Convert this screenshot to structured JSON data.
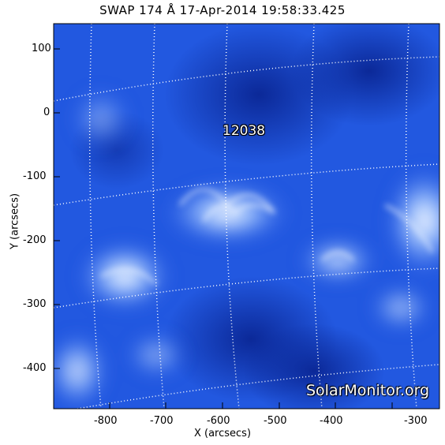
{
  "title": "SWAP 174 Å 17-Apr-2014 19:58:33.425",
  "x_axis": {
    "label": "X (arcsecs)",
    "ticks": [
      "-800",
      "-700",
      "-600",
      "-500",
      "-400",
      "-300"
    ]
  },
  "y_axis": {
    "label": "Y (arcsecs)",
    "ticks": [
      "100",
      "0",
      "-100",
      "-200",
      "-300",
      "-400"
    ]
  },
  "active_region": {
    "label": "12038"
  },
  "watermark": "SolarMonitor.org",
  "colors": {
    "background": "#1a4fd8",
    "dark": "#0b2a9e",
    "bright": "#e8f4ff",
    "grid": "#ffffff"
  }
}
